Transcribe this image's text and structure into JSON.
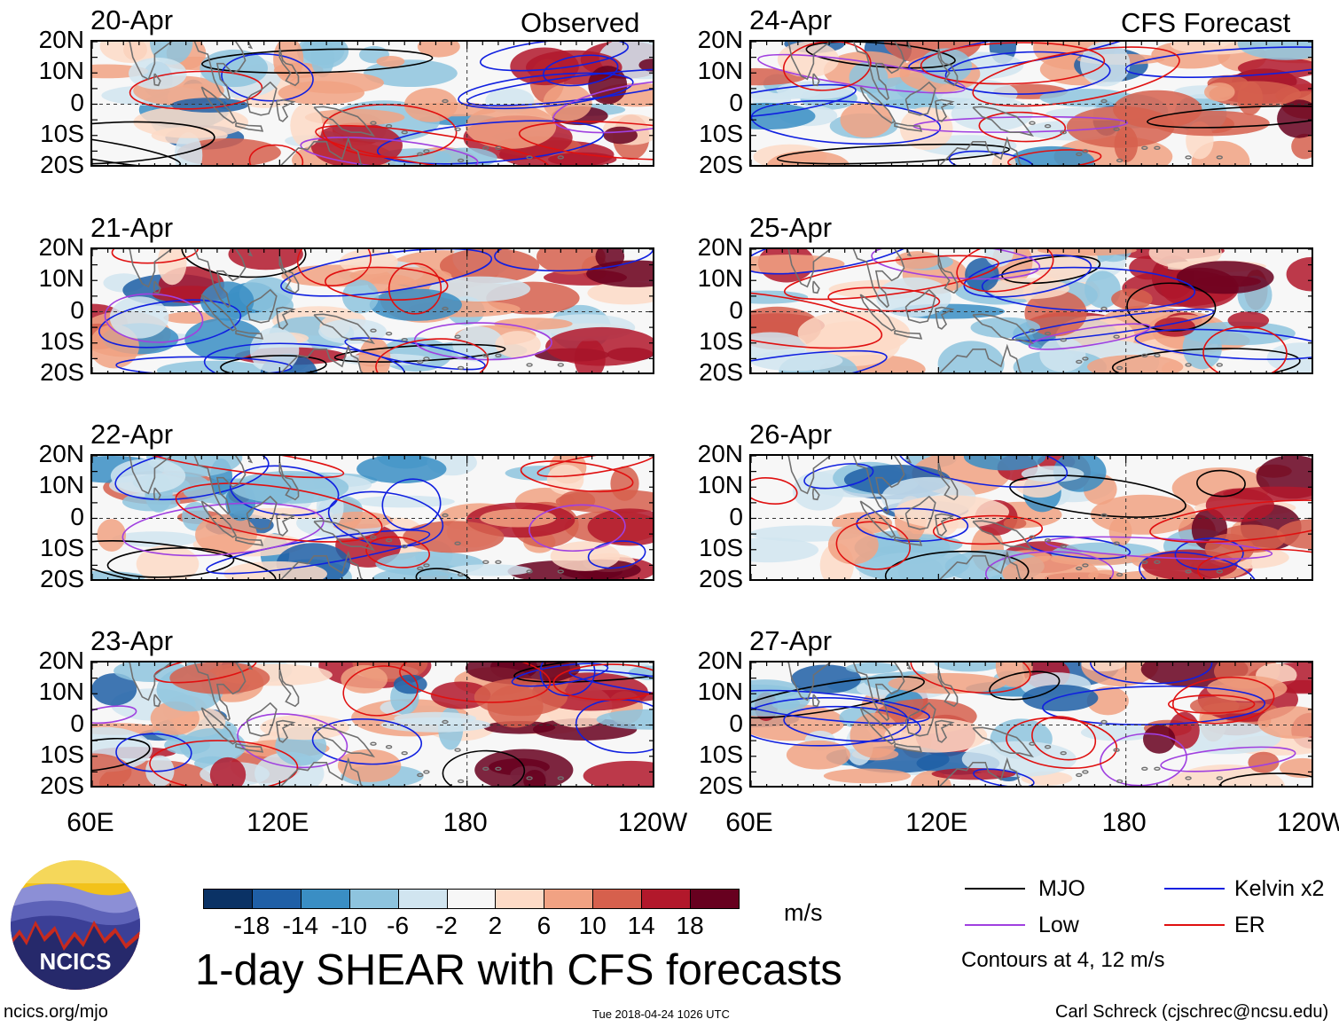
{
  "chart_data": {
    "type": "heatmap",
    "title": "1-day SHEAR with CFS forecasts",
    "column_titles": [
      "Observed",
      "CFS Forecast"
    ],
    "panels": [
      {
        "date": "20-Apr",
        "source": "Observed"
      },
      {
        "date": "21-Apr",
        "source": "Observed"
      },
      {
        "date": "22-Apr",
        "source": "Observed"
      },
      {
        "date": "23-Apr",
        "source": "Observed"
      },
      {
        "date": "24-Apr",
        "source": "CFS Forecast"
      },
      {
        "date": "25-Apr",
        "source": "CFS Forecast"
      },
      {
        "date": "26-Apr",
        "source": "CFS Forecast"
      },
      {
        "date": "27-Apr",
        "source": "CFS Forecast"
      }
    ],
    "y_tick_labels": [
      "20N",
      "10N",
      "0",
      "10S",
      "20S"
    ],
    "x_tick_labels": [
      "60E",
      "120E",
      "180",
      "120W"
    ],
    "xlim_deg_east": [
      60,
      240
    ],
    "ylim_deg_lat": [
      -20,
      20
    ],
    "colorbar": {
      "unit": "m/s",
      "tick_labels": [
        "-18",
        "-14",
        "-10",
        "-6",
        "-2",
        "2",
        "6",
        "10",
        "14",
        "18"
      ],
      "colors": [
        "#0a3265",
        "#1f5fa6",
        "#3a8ec4",
        "#8ec4de",
        "#d1e5f0",
        "#f7f7f7",
        "#fddbc7",
        "#f1a283",
        "#d6604d",
        "#b2182b",
        "#67001f"
      ]
    },
    "legend": [
      {
        "label": "MJO",
        "color": "#000000"
      },
      {
        "label": "Kelvin x2",
        "color": "#1020e0"
      },
      {
        "label": "Low",
        "color": "#a040e0"
      },
      {
        "label": "ER",
        "color": "#e01010"
      }
    ],
    "contour_note": "Contours at 4, 12 m/s"
  },
  "footer": {
    "logo_text": "NCICS",
    "url": "ncics.org/mjo",
    "timestamp": "Tue 2018-04-24 1026 UTC",
    "credit": "Carl Schreck (cjschrec@ncsu.edu)"
  }
}
